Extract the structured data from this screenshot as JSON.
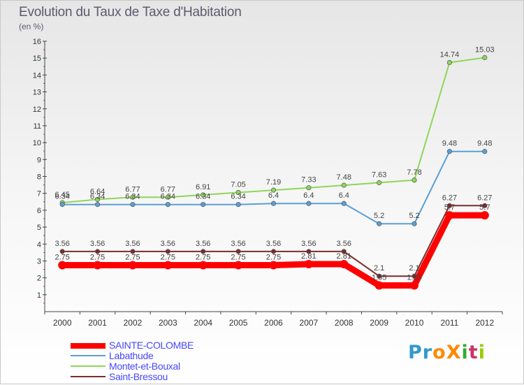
{
  "header": {
    "title": "Evolution du Taux de Taxe d'Habitation",
    "subtitle": "(en %)"
  },
  "brand": {
    "logo_text": "ProXiti",
    "letter_colors": [
      "#3399cc",
      "#3399cc",
      "#ff8800",
      "#ff8800",
      "#33aa33",
      "#cc3366",
      "#99cc00"
    ]
  },
  "chart_data": {
    "type": "line",
    "title": "Evolution du Taux de Taxe d'Habitation",
    "subtitle": "(en %)",
    "x": [
      "2000",
      "2001",
      "2002",
      "2003",
      "2004",
      "2005",
      "2006",
      "2007",
      "2008",
      "2009",
      "2010",
      "2011",
      "2012"
    ],
    "ylim": [
      0,
      16
    ],
    "yticks": [
      1,
      2,
      3,
      4,
      5,
      6,
      7,
      8,
      9,
      10,
      11,
      12,
      13,
      14,
      15,
      16
    ],
    "grid": false,
    "legend_position": "bottom-left",
    "series": [
      {
        "name": "SAINTE-COLOMBE",
        "color": "#ff0000",
        "values": [
          2.75,
          2.75,
          2.75,
          2.75,
          2.75,
          2.75,
          2.75,
          2.81,
          2.81,
          1.55,
          1.55,
          5.7,
          5.7
        ],
        "labels": [
          "2.75",
          "2.75",
          "2.75",
          "2.75",
          "2.75",
          "2.75",
          "2.75",
          "2.81",
          "2.81",
          "1.55",
          "1.55",
          "5.7",
          "5.7"
        ]
      },
      {
        "name": "Labathude",
        "color": "#5a9fd4",
        "values": [
          6.34,
          6.34,
          6.34,
          6.34,
          6.34,
          6.34,
          6.4,
          6.4,
          6.4,
          5.2,
          5.2,
          9.48,
          9.48
        ],
        "labels": [
          "6.34",
          "6.34",
          "6.34",
          "6.34",
          "6.34",
          "6.34",
          "6.4",
          "6.4",
          "6.4",
          "5.2",
          "5.2",
          "9.48",
          "9.48"
        ]
      },
      {
        "name": "Montet-et-Bouxal",
        "color": "#8ed65a",
        "values": [
          6.45,
          6.64,
          6.77,
          6.77,
          6.91,
          7.05,
          7.19,
          7.33,
          7.48,
          7.63,
          7.78,
          14.74,
          15.03
        ],
        "labels": [
          "6.45",
          "6.64",
          "6.77",
          "6.77",
          "6.91",
          "7.05",
          "7.19",
          "7.33",
          "7.48",
          "7.63",
          "7.78",
          "14.74",
          "15.03"
        ]
      },
      {
        "name": "Saint-Bressou",
        "color": "#7b2d2d",
        "values": [
          3.56,
          3.56,
          3.56,
          3.56,
          3.56,
          3.56,
          3.56,
          3.56,
          3.56,
          2.1,
          2.1,
          6.27,
          6.27
        ],
        "labels": [
          "3.56",
          "3.56",
          "3.56",
          "3.56",
          "3.56",
          "3.56",
          "3.56",
          "3.56",
          "3.56",
          "2.1",
          "2.1",
          "6.27",
          "6.27"
        ]
      }
    ]
  },
  "legend": {
    "items": [
      {
        "label": "SAINTE-COLOMBE",
        "color": "#ff0000"
      },
      {
        "label": "Labathude",
        "color": "#5a9fd4"
      },
      {
        "label": "Montet-et-Bouxal",
        "color": "#8ed65a"
      },
      {
        "label": "Saint-Bressou",
        "color": "#7b2d2d"
      }
    ]
  }
}
